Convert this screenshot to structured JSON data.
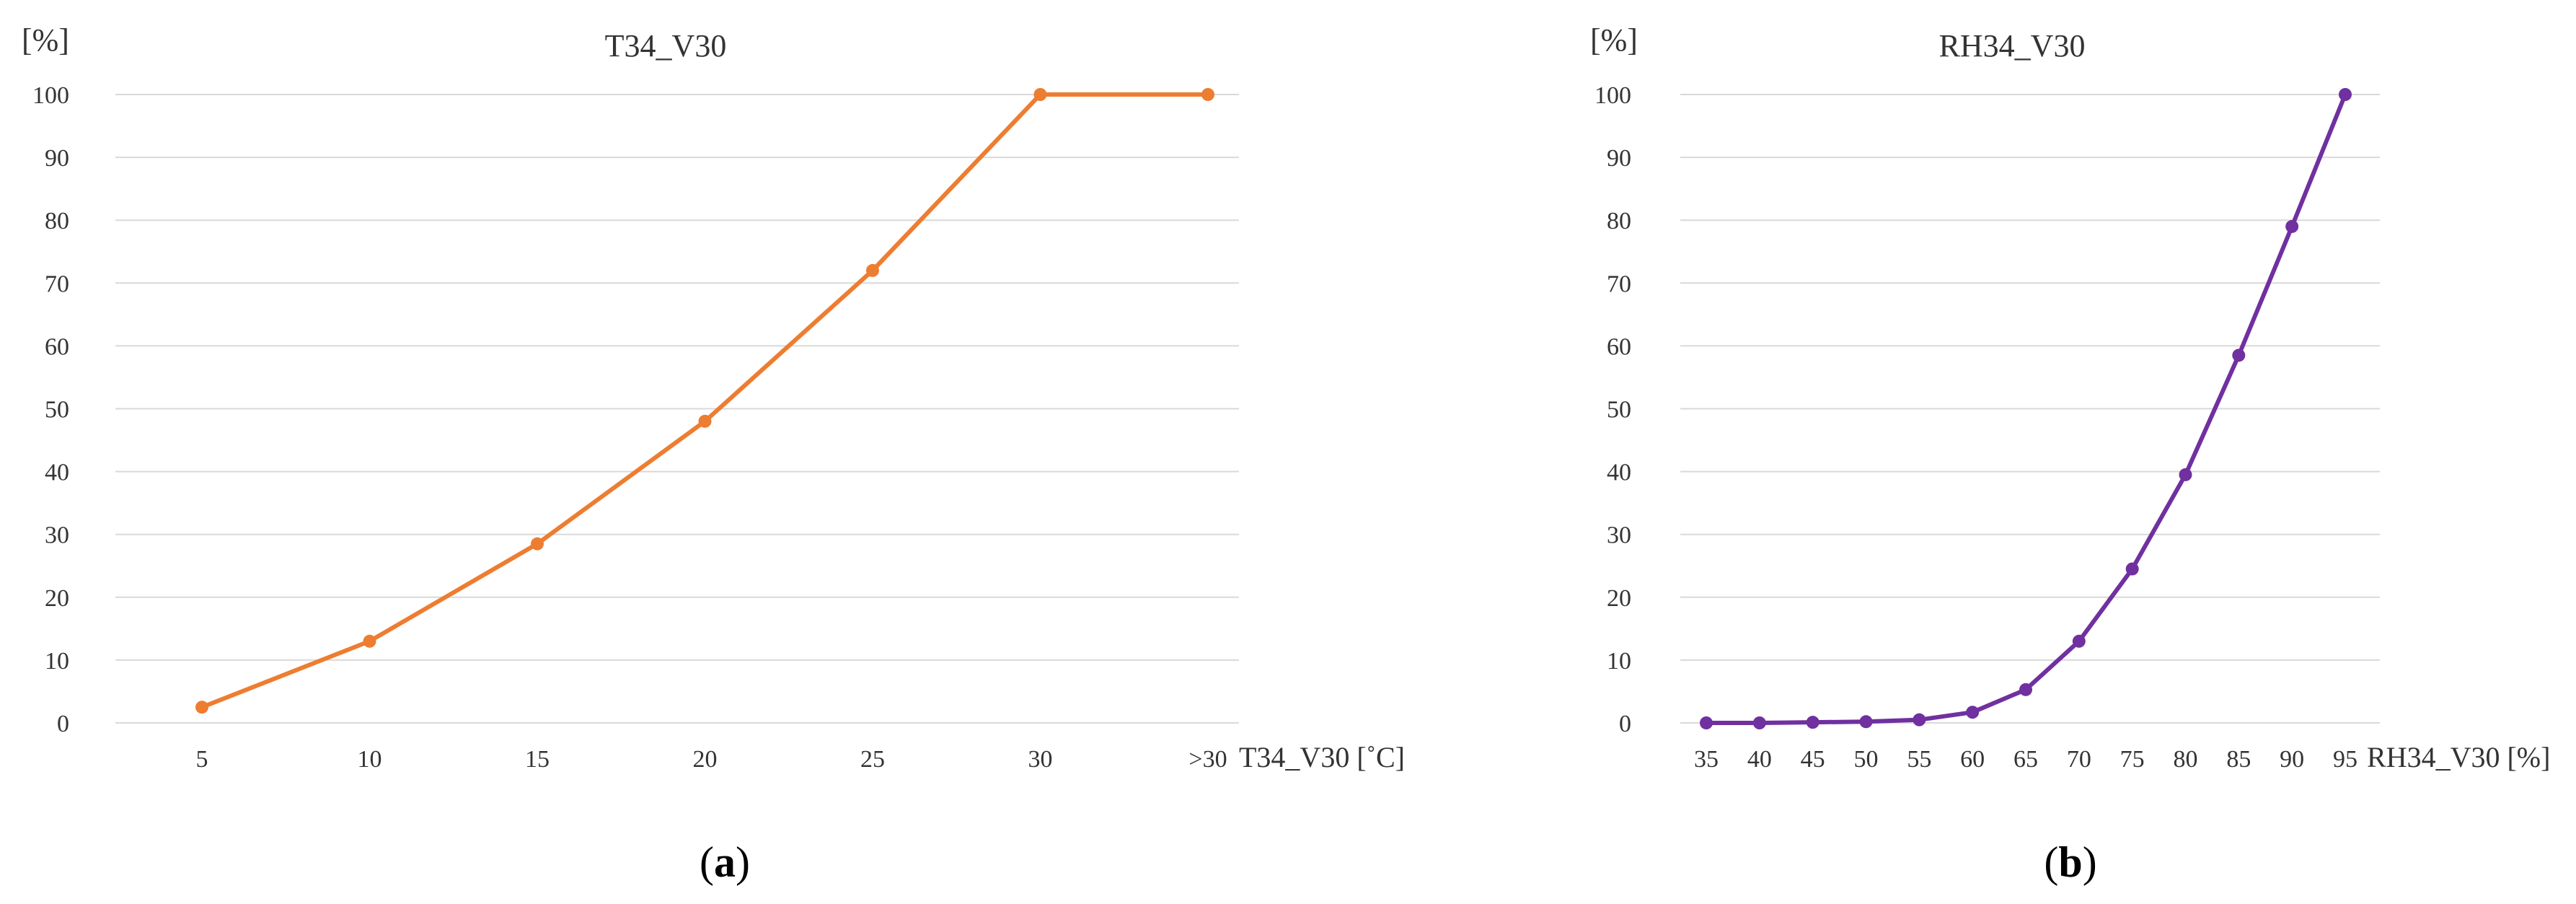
{
  "chart_data": [
    {
      "type": "line",
      "title": "T34_V30",
      "ylabel": "[%]",
      "xlabel": "T34_V30 [˚C]",
      "categories": [
        "5",
        "10",
        "15",
        "20",
        "25",
        "30",
        ">30"
      ],
      "series": [
        {
          "values": [
            2.5,
            13,
            28.5,
            48,
            72,
            100,
            100
          ],
          "color": "#ed7d31"
        }
      ],
      "ylim": [
        0,
        100
      ],
      "yticks": [
        0,
        10,
        20,
        30,
        40,
        50,
        60,
        70,
        80,
        90,
        100
      ],
      "grid": true,
      "panel_label": {
        "open": "(",
        "letter": "a",
        "close": ")"
      }
    },
    {
      "type": "line",
      "title": "RH34_V30",
      "ylabel": "[%]",
      "xlabel": "RH34_V30 [%]",
      "categories": [
        "35",
        "40",
        "45",
        "50",
        "55",
        "60",
        "65",
        "70",
        "75",
        "80",
        "85",
        "90",
        "95"
      ],
      "series": [
        {
          "values": [
            0,
            0,
            0.1,
            0.2,
            0.5,
            1.7,
            5.3,
            13,
            24.5,
            39.5,
            58.5,
            79,
            100
          ],
          "color": "#7030a0"
        }
      ],
      "ylim": [
        0,
        100
      ],
      "yticks": [
        0,
        10,
        20,
        30,
        40,
        50,
        60,
        70,
        80,
        90,
        100
      ],
      "grid": true,
      "panel_label": {
        "open": "(",
        "letter": "b",
        "close": ")"
      }
    }
  ]
}
